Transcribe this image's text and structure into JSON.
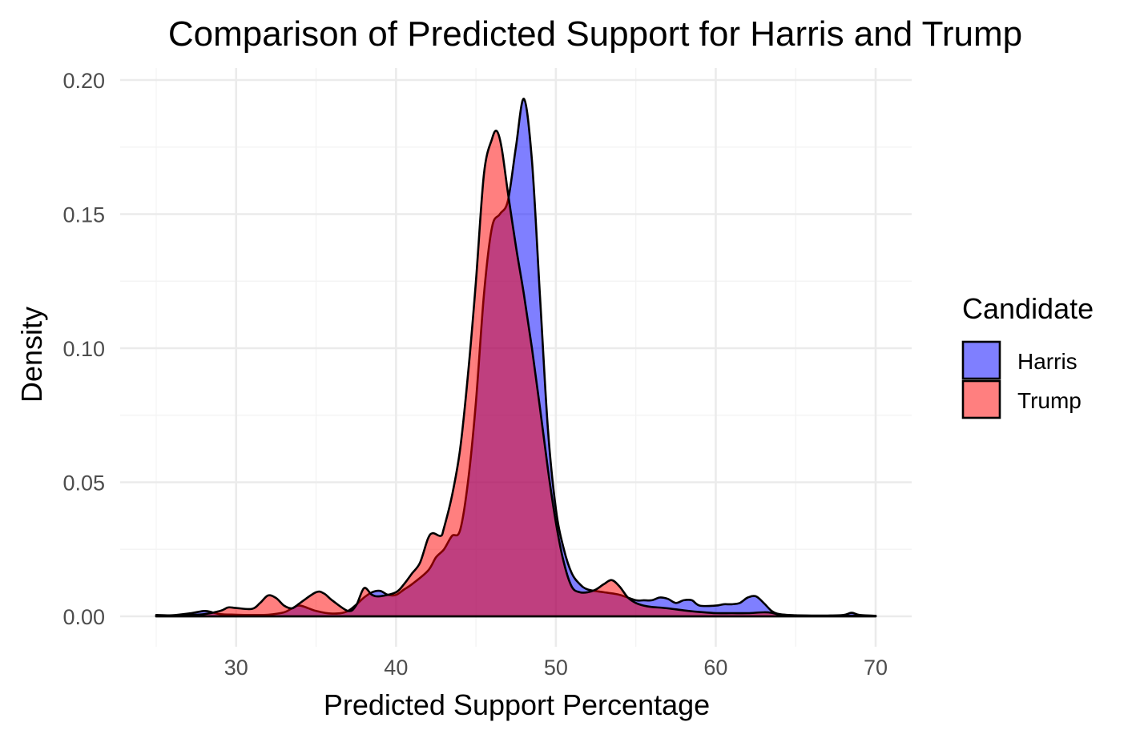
{
  "chart_data": {
    "type": "area",
    "subtype": "density",
    "title": "Comparison of Predicted Support for Harris and Trump",
    "xlabel": "Predicted Support Percentage",
    "ylabel": "Density",
    "xlim": [
      25,
      70
    ],
    "ylim": [
      0,
      0.2
    ],
    "x_ticks": [
      30,
      40,
      50,
      60,
      70
    ],
    "y_ticks": [
      0.0,
      0.05,
      0.1,
      0.15,
      0.2
    ],
    "x_tick_labels": [
      "30",
      "40",
      "50",
      "60",
      "70"
    ],
    "y_tick_labels": [
      "0.00",
      "0.05",
      "0.10",
      "0.15",
      "0.20"
    ],
    "grid": true,
    "legend": {
      "title": "Candidate",
      "position": "right"
    },
    "series": [
      {
        "name": "Harris",
        "color": "#0000ff",
        "opacity": 0.5,
        "points": [
          [
            25,
            0.0005
          ],
          [
            26,
            0.0004
          ],
          [
            27,
            0.001
          ],
          [
            28,
            0.002
          ],
          [
            28.5,
            0.0015
          ],
          [
            29,
            0.0008
          ],
          [
            30,
            0.0006
          ],
          [
            31,
            0.0005
          ],
          [
            32,
            0.0006
          ],
          [
            33,
            0.0015
          ],
          [
            33.5,
            0.003
          ],
          [
            34,
            0.004
          ],
          [
            35,
            0.002
          ],
          [
            36,
            0.001
          ],
          [
            37,
            0.002
          ],
          [
            38,
            0.007
          ],
          [
            38.5,
            0.009
          ],
          [
            39,
            0.0095
          ],
          [
            39.5,
            0.008
          ],
          [
            40,
            0.008
          ],
          [
            40.5,
            0.01
          ],
          [
            41,
            0.012
          ],
          [
            42,
            0.017
          ],
          [
            42.5,
            0.022
          ],
          [
            43,
            0.025
          ],
          [
            43.5,
            0.03
          ],
          [
            44,
            0.032
          ],
          [
            44.5,
            0.05
          ],
          [
            45,
            0.08
          ],
          [
            45.5,
            0.12
          ],
          [
            46,
            0.145
          ],
          [
            46.5,
            0.15
          ],
          [
            47,
            0.155
          ],
          [
            47.5,
            0.175
          ],
          [
            48,
            0.193
          ],
          [
            48.5,
            0.17
          ],
          [
            49,
            0.12
          ],
          [
            49.5,
            0.07
          ],
          [
            50,
            0.04
          ],
          [
            50.5,
            0.025
          ],
          [
            51,
            0.016
          ],
          [
            51.5,
            0.012
          ],
          [
            52,
            0.01
          ],
          [
            53,
            0.009
          ],
          [
            54,
            0.008
          ],
          [
            55,
            0.006
          ],
          [
            55.5,
            0.006
          ],
          [
            56,
            0.006
          ],
          [
            56.5,
            0.007
          ],
          [
            57,
            0.0065
          ],
          [
            57.5,
            0.005
          ],
          [
            58,
            0.006
          ],
          [
            58.5,
            0.006
          ],
          [
            59,
            0.004
          ],
          [
            60,
            0.004
          ],
          [
            60.5,
            0.0045
          ],
          [
            61,
            0.0045
          ],
          [
            61.5,
            0.005
          ],
          [
            62,
            0.007
          ],
          [
            62.5,
            0.0075
          ],
          [
            63,
            0.005
          ],
          [
            63.5,
            0.002
          ],
          [
            64,
            0.0008
          ],
          [
            65,
            0.0004
          ],
          [
            66,
            0.0003
          ],
          [
            67,
            0.0003
          ],
          [
            68,
            0.0005
          ],
          [
            68.5,
            0.0013
          ],
          [
            69,
            0.0005
          ],
          [
            70,
            0.0002
          ]
        ]
      },
      {
        "name": "Trump",
        "color": "#ff0000",
        "opacity": 0.5,
        "points": [
          [
            25,
            0.0
          ],
          [
            26,
            0.0002
          ],
          [
            27,
            0.0005
          ],
          [
            28,
            0.0008
          ],
          [
            29,
            0.002
          ],
          [
            29.5,
            0.0033
          ],
          [
            30,
            0.0031
          ],
          [
            31,
            0.0028
          ],
          [
            31.5,
            0.005
          ],
          [
            32,
            0.0078
          ],
          [
            32.5,
            0.0068
          ],
          [
            33,
            0.004
          ],
          [
            33.5,
            0.003
          ],
          [
            34,
            0.005
          ],
          [
            35,
            0.009
          ],
          [
            35.5,
            0.0085
          ],
          [
            36,
            0.006
          ],
          [
            37,
            0.002
          ],
          [
            37.5,
            0.004
          ],
          [
            38,
            0.0105
          ],
          [
            38.5,
            0.008
          ],
          [
            39,
            0.0075
          ],
          [
            40,
            0.009
          ],
          [
            40.5,
            0.012
          ],
          [
            41,
            0.016
          ],
          [
            41.5,
            0.02
          ],
          [
            42,
            0.029
          ],
          [
            42.3,
            0.031
          ],
          [
            42.8,
            0.03
          ],
          [
            43,
            0.033
          ],
          [
            43.5,
            0.045
          ],
          [
            44,
            0.062
          ],
          [
            44.5,
            0.09
          ],
          [
            45,
            0.125
          ],
          [
            45.5,
            0.165
          ],
          [
            46,
            0.178
          ],
          [
            46.3,
            0.181
          ],
          [
            46.6,
            0.175
          ],
          [
            47,
            0.158
          ],
          [
            47.5,
            0.138
          ],
          [
            48,
            0.12
          ],
          [
            48.5,
            0.1
          ],
          [
            49,
            0.078
          ],
          [
            49.5,
            0.055
          ],
          [
            50,
            0.035
          ],
          [
            50.5,
            0.02
          ],
          [
            51,
            0.011
          ],
          [
            51.5,
            0.009
          ],
          [
            52,
            0.009
          ],
          [
            52.5,
            0.01
          ],
          [
            53,
            0.012
          ],
          [
            53.5,
            0.0135
          ],
          [
            54,
            0.011
          ],
          [
            54.5,
            0.007
          ],
          [
            55,
            0.005
          ],
          [
            55.5,
            0.004
          ],
          [
            56,
            0.0035
          ],
          [
            57,
            0.003
          ],
          [
            58,
            0.0022
          ],
          [
            59,
            0.0016
          ],
          [
            60,
            0.0012
          ],
          [
            61,
            0.0012
          ],
          [
            62,
            0.0012
          ],
          [
            63,
            0.0015
          ],
          [
            63.5,
            0.0013
          ],
          [
            64,
            0.0006
          ],
          [
            65,
            0.0003
          ],
          [
            66,
            0.0002
          ],
          [
            67,
            0.0002
          ],
          [
            68,
            0.0002
          ],
          [
            69,
            0.0003
          ],
          [
            70,
            0.0002
          ]
        ]
      }
    ]
  }
}
